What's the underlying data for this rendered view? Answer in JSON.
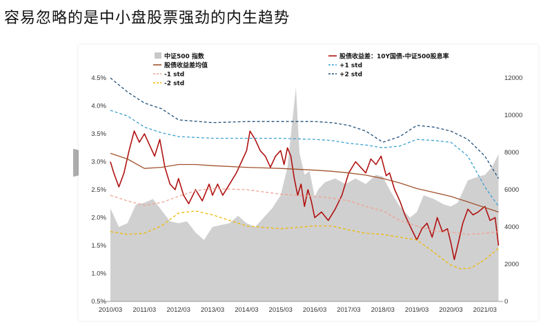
{
  "title": "容易忽略的是中小盘股票强劲的内生趋势",
  "chart_data": {
    "type": "line",
    "x_ticks": [
      "2010/03",
      "2011/03",
      "2012/03",
      "2013/03",
      "2014/03",
      "2015/03",
      "2016/03",
      "2017/03",
      "2018/03",
      "2019/03",
      "2020/03",
      "2021/03"
    ],
    "y_left": {
      "min": 0.5,
      "max": 4.5,
      "ticks": [
        "0.5%",
        "1.0%",
        "1.5%",
        "2.0%",
        "2.5%",
        "3.0%",
        "3.5%",
        "4.0%",
        "4.5%"
      ]
    },
    "y_right": {
      "min": 0,
      "max": 12000,
      "ticks": [
        "0",
        "2000",
        "4000",
        "6000",
        "8000",
        "10000",
        "12000"
      ]
    },
    "legend": [
      {
        "label": "中证500 指数",
        "style": "area",
        "color": "#c8c8c8"
      },
      {
        "label": "股债收益差：10Y国债-中证500股息率",
        "style": "solid",
        "color": "#b01010"
      },
      {
        "label": "股债收益差均值",
        "style": "solid",
        "color": "#a0522d"
      },
      {
        "label": "+1 std",
        "style": "dashed",
        "color": "#3aa0d0"
      },
      {
        "label": "-1 std",
        "style": "dashed",
        "color": "#f0a090"
      },
      {
        "label": "+2 std",
        "style": "dashed",
        "color": "#1f4e79"
      },
      {
        "label": "-2 std",
        "style": "dashed",
        "color": "#f0b800"
      }
    ],
    "series": [
      {
        "name": "中证500 指数",
        "axis": "right",
        "color": "#c8c8c8",
        "x": [
          2010.0,
          2010.25,
          2010.5,
          2010.75,
          2011.0,
          2011.25,
          2011.5,
          2011.75,
          2012.0,
          2012.25,
          2012.5,
          2012.75,
          2013.0,
          2013.25,
          2013.5,
          2013.75,
          2014.0,
          2014.25,
          2014.5,
          2014.75,
          2015.0,
          2015.2,
          2015.35,
          2015.45,
          2015.55,
          2015.7,
          2015.85,
          2016.0,
          2016.1,
          2016.3,
          2016.6,
          2016.9,
          2017.2,
          2017.5,
          2017.8,
          2018.0,
          2018.2,
          2018.5,
          2018.8,
          2019.0,
          2019.2,
          2019.5,
          2019.8,
          2020.0,
          2020.2,
          2020.5,
          2020.8,
          2021.0,
          2021.2,
          2021.4
        ],
        "y": [
          5000,
          4000,
          4200,
          5200,
          5300,
          5500,
          4900,
          4300,
          4200,
          4300,
          3700,
          3300,
          4000,
          4100,
          4200,
          4600,
          4200,
          4000,
          4500,
          5000,
          5700,
          7200,
          9800,
          11500,
          8000,
          6800,
          7000,
          5600,
          6000,
          6400,
          6600,
          6300,
          6600,
          6300,
          6800,
          6700,
          6000,
          5100,
          4500,
          4800,
          5700,
          5500,
          5200,
          5100,
          5300,
          6500,
          6700,
          6800,
          7200,
          7900
        ]
      },
      {
        "name": "股债收益差：10Y国债-中证500股息率",
        "axis": "left",
        "color": "#b01010",
        "x": [
          2010.0,
          2010.1,
          2010.25,
          2010.4,
          2010.55,
          2010.7,
          2010.85,
          2011.0,
          2011.15,
          2011.3,
          2011.45,
          2011.6,
          2011.75,
          2011.9,
          2012.0,
          2012.15,
          2012.3,
          2012.5,
          2012.7,
          2012.9,
          2013.0,
          2013.15,
          2013.3,
          2013.5,
          2013.7,
          2013.85,
          2014.0,
          2014.1,
          2014.25,
          2014.4,
          2014.55,
          2014.7,
          2014.85,
          2015.0,
          2015.1,
          2015.2,
          2015.3,
          2015.4,
          2015.5,
          2015.6,
          2015.7,
          2015.8,
          2015.9,
          2016.0,
          2016.2,
          2016.4,
          2016.6,
          2016.8,
          2017.0,
          2017.2,
          2017.35,
          2017.5,
          2017.65,
          2017.8,
          2017.95,
          2018.1,
          2018.2,
          2018.35,
          2018.5,
          2018.65,
          2018.8,
          2019.0,
          2019.15,
          2019.3,
          2019.45,
          2019.6,
          2019.75,
          2019.9,
          2020.0,
          2020.1,
          2020.2,
          2020.35,
          2020.5,
          2020.65,
          2020.8,
          2021.0,
          2021.15,
          2021.3,
          2021.4
        ],
        "y": [
          3.0,
          2.8,
          2.55,
          2.8,
          3.2,
          3.55,
          3.35,
          3.5,
          3.3,
          3.1,
          3.4,
          2.9,
          2.6,
          2.5,
          2.7,
          2.4,
          2.25,
          2.5,
          2.3,
          2.6,
          2.4,
          2.6,
          2.4,
          2.6,
          2.8,
          3.0,
          3.2,
          3.55,
          3.4,
          3.2,
          3.1,
          2.9,
          3.1,
          3.2,
          2.95,
          3.25,
          3.1,
          2.7,
          2.4,
          2.6,
          2.2,
          2.5,
          2.3,
          2.0,
          2.1,
          1.95,
          2.15,
          2.4,
          2.8,
          3.0,
          2.9,
          2.8,
          3.05,
          2.95,
          3.1,
          2.75,
          2.8,
          2.5,
          2.3,
          2.05,
          1.85,
          1.6,
          1.8,
          1.9,
          1.65,
          2.0,
          1.75,
          1.8,
          1.55,
          1.25,
          1.5,
          1.9,
          2.15,
          2.05,
          2.1,
          2.2,
          1.95,
          2.0,
          1.5
        ]
      },
      {
        "name": "股债收益差均值",
        "axis": "left",
        "color": "#a0522d",
        "x": [
          2010.0,
          2010.5,
          2011.0,
          2011.5,
          2012.0,
          2012.5,
          2013.0,
          2014.0,
          2015.0,
          2016.0,
          2016.5,
          2017.0,
          2017.5,
          2018.0,
          2018.5,
          2019.0,
          2019.5,
          2020.0,
          2020.5,
          2021.0,
          2021.4
        ],
        "y": [
          3.15,
          3.05,
          2.88,
          2.9,
          2.95,
          2.95,
          2.93,
          2.9,
          2.88,
          2.85,
          2.83,
          2.8,
          2.76,
          2.7,
          2.62,
          2.52,
          2.45,
          2.38,
          2.28,
          2.18,
          2.1
        ]
      },
      {
        "name": "+1 std",
        "axis": "left",
        "color": "#3aa0d0",
        "x": [
          2010.0,
          2010.5,
          2011.0,
          2011.5,
          2012.0,
          2013.0,
          2014.0,
          2015.0,
          2016.0,
          2016.5,
          2017.0,
          2017.5,
          2018.0,
          2018.5,
          2019.0,
          2019.5,
          2020.0,
          2020.5,
          2021.0,
          2021.4
        ],
        "y": [
          3.92,
          3.82,
          3.62,
          3.52,
          3.45,
          3.42,
          3.42,
          3.42,
          3.4,
          3.38,
          3.33,
          3.3,
          3.25,
          3.28,
          3.4,
          3.38,
          3.35,
          3.1,
          2.55,
          2.2
        ]
      },
      {
        "name": "-1 std",
        "axis": "left",
        "color": "#f0a090",
        "x": [
          2010.0,
          2010.5,
          2011.0,
          2011.5,
          2012.0,
          2012.5,
          2013.0,
          2014.0,
          2015.0,
          2016.0,
          2016.5,
          2017.0,
          2017.5,
          2018.0,
          2018.5,
          2019.0,
          2019.5,
          2020.0,
          2020.5,
          2021.0,
          2021.4
        ],
        "y": [
          2.4,
          2.3,
          2.22,
          2.27,
          2.38,
          2.48,
          2.52,
          2.5,
          2.42,
          2.38,
          2.35,
          2.3,
          2.2,
          2.12,
          1.95,
          1.85,
          1.76,
          1.74,
          1.7,
          1.72,
          1.75
        ]
      },
      {
        "name": "+2 std",
        "axis": "left",
        "color": "#1f4e79",
        "x": [
          2010.0,
          2010.5,
          2011.0,
          2011.5,
          2012.0,
          2013.0,
          2014.0,
          2015.0,
          2016.0,
          2016.5,
          2017.0,
          2017.5,
          2018.0,
          2018.5,
          2019.0,
          2019.5,
          2020.0,
          2020.5,
          2021.0,
          2021.4
        ],
        "y": [
          4.5,
          4.25,
          4.05,
          3.95,
          3.75,
          3.7,
          3.72,
          3.72,
          3.72,
          3.7,
          3.65,
          3.55,
          3.35,
          3.45,
          3.65,
          3.62,
          3.55,
          3.4,
          3.1,
          2.7
        ]
      },
      {
        "name": "-2 std",
        "axis": "left",
        "color": "#f0b800",
        "x": [
          2010.0,
          2010.5,
          2011.0,
          2011.5,
          2012.0,
          2012.5,
          2013.0,
          2013.5,
          2014.0,
          2015.0,
          2016.0,
          2016.5,
          2017.0,
          2017.5,
          2018.0,
          2018.5,
          2019.0,
          2019.5,
          2020.0,
          2020.3,
          2020.6,
          2021.0,
          2021.4
        ],
        "y": [
          1.75,
          1.7,
          1.72,
          1.85,
          2.08,
          2.12,
          2.05,
          1.95,
          1.85,
          1.8,
          1.85,
          1.85,
          1.78,
          1.72,
          1.7,
          1.65,
          1.6,
          1.38,
          1.15,
          1.08,
          1.1,
          1.25,
          1.45
        ]
      }
    ]
  }
}
